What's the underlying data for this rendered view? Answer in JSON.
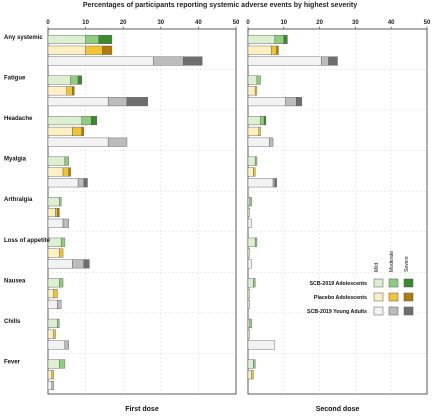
{
  "chart_data": {
    "type": "bar",
    "title": "Percentages of participants reporting systemic adverse events by highest severity",
    "xlim": [
      0,
      50
    ],
    "xticks": [
      0,
      10,
      20,
      30,
      40,
      50
    ],
    "stacked": true,
    "grid": true,
    "panels": [
      {
        "name": "First dose"
      },
      {
        "name": "Second dose"
      }
    ],
    "severity_levels": [
      "Mild",
      "Moderate",
      "Severe"
    ],
    "groups": [
      {
        "name": "SCB-2019 Adolescents",
        "colors": [
          "#dcefd0",
          "#8fce7e",
          "#3b8a2c"
        ]
      },
      {
        "name": "Placebo Adolescents",
        "colors": [
          "#fbefc3",
          "#f2c433",
          "#b07c08"
        ]
      },
      {
        "name": "SCB-2019 Young Adults",
        "colors": [
          "#f2f2f2",
          "#bcbcbc",
          "#6e6e6e"
        ]
      }
    ],
    "categories": [
      "Any systemic",
      "Fatigue",
      "Headache",
      "Myalgia",
      "Arthralgia",
      "Loss of appetite",
      "Nausea",
      "Chills",
      "Fever"
    ],
    "values": {
      "First dose": [
        [
          [
            10,
            3.5,
            3.5
          ],
          [
            10,
            4.5,
            2.5
          ],
          [
            28,
            8,
            5
          ]
        ],
        [
          [
            6,
            2,
            1
          ],
          [
            5,
            1.5,
            0.5
          ],
          [
            16,
            5,
            5.5
          ]
        ],
        [
          [
            9,
            2.5,
            1.5
          ],
          [
            6.5,
            2.5,
            0.5
          ],
          [
            16,
            5,
            0
          ]
        ],
        [
          [
            4.5,
            1,
            0
          ],
          [
            4,
            1.5,
            0.5
          ],
          [
            8,
            1.5,
            1
          ]
        ],
        [
          [
            3,
            0.5,
            0
          ],
          [
            2,
            0.5,
            0.5
          ],
          [
            4,
            1.5,
            0
          ]
        ],
        [
          [
            3.5,
            1,
            0
          ],
          [
            3,
            1,
            0
          ],
          [
            6.5,
            3,
            1.5
          ]
        ],
        [
          [
            3,
            1,
            0
          ],
          [
            1.5,
            1,
            0
          ],
          [
            2.5,
            1,
            0
          ]
        ],
        [
          [
            2.5,
            0.5,
            0
          ],
          [
            1.5,
            0.5,
            0
          ],
          [
            4.5,
            1,
            0
          ]
        ],
        [
          [
            3,
            1.5,
            0
          ],
          [
            1,
            0.5,
            0
          ],
          [
            1,
            0.5,
            0
          ]
        ]
      ],
      "Second dose": [
        [
          [
            7.5,
            2.5,
            1
          ],
          [
            6.5,
            1.5,
            0.5
          ],
          [
            20.5,
            2,
            2.5
          ]
        ],
        [
          [
            2.5,
            1,
            0
          ],
          [
            2,
            0.5,
            0
          ],
          [
            10.5,
            3,
            1.5
          ]
        ],
        [
          [
            3.5,
            1,
            0.5
          ],
          [
            3,
            0.5,
            0
          ],
          [
            6,
            1,
            0
          ]
        ],
        [
          [
            2,
            0.5,
            0
          ],
          [
            1.5,
            0.5,
            0
          ],
          [
            7,
            0.5,
            0.5
          ]
        ],
        [
          [
            0.5,
            0.5,
            0
          ],
          [
            0.5,
            0,
            0
          ],
          [
            1,
            0,
            0
          ]
        ],
        [
          [
            2,
            0.5,
            0
          ],
          [
            0.5,
            0,
            0
          ],
          [
            1,
            0,
            0
          ]
        ],
        [
          [
            1.5,
            0.5,
            0
          ],
          [
            0.5,
            0,
            0
          ],
          [
            0.5,
            0,
            0
          ]
        ],
        [
          [
            0.5,
            0.5,
            0
          ],
          [
            0.5,
            0,
            0
          ],
          [
            7.5,
            0,
            0
          ]
        ],
        [
          [
            1.5,
            0.5,
            0
          ],
          [
            1,
            0.5,
            0
          ],
          [
            0,
            0,
            0
          ]
        ]
      ]
    }
  }
}
